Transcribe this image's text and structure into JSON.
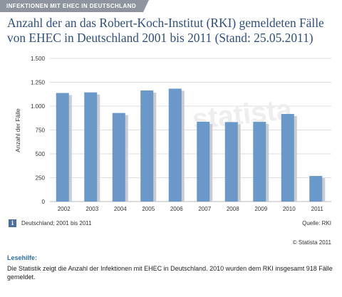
{
  "header": {
    "tag": "INFEKTIONEN MIT EHEC IN DEUTSCHLAND",
    "title": "Anzahl der an das Robert-Koch-Institut (RKI) gemeldeten Fälle von EHEC in Deutschland 2001 bis 2011 (Stand: 25.05.2011)"
  },
  "colors": {
    "bar": "#6a98c8",
    "bar_shadow": "#c9ccd0",
    "title": "#2f4f7f",
    "tag_bg": "#8f959e",
    "help_title": "#2f6fa3"
  },
  "chart_data": {
    "type": "bar",
    "categories": [
      "2002",
      "2003",
      "2004",
      "2005",
      "2006",
      "2007",
      "2008",
      "2009",
      "2010",
      "2011"
    ],
    "values": [
      1138,
      1144,
      928,
      1164,
      1183,
      836,
      833,
      835,
      918,
      268
    ],
    "ylabel": "Anzahl der Fälle",
    "ylim": [
      0,
      1500
    ],
    "yticks": [
      0,
      250,
      500,
      750,
      1000,
      1250,
      1500
    ],
    "ytick_labels": [
      "0",
      "250",
      "500",
      "750",
      "1.000",
      "1.250",
      "1.500"
    ],
    "grid": true,
    "watermark": "statista"
  },
  "footer": {
    "info_icon": "info-icon",
    "info_text": "Deutschland; 2001 bis 2011",
    "source": "Quelle: RKI",
    "copyright": "© Statista 2011"
  },
  "help": {
    "title": "Lesehilfe:",
    "text": "Die Statistik zeigt die Anzahl der Infektionen mit EHEC in Deutschland. 2010 wurden dem RKI insgesamt 918 Fälle gemeldet."
  }
}
